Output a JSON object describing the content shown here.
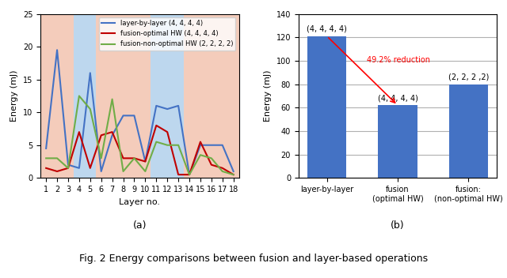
{
  "caption": "Fig. 2 Energy comparisons between fusion and layer-based operations",
  "chart_data": [
    {
      "type": "line",
      "subtitle": "(a)",
      "x_label": "Layer no.",
      "y_label": "Energy (mJ)",
      "x": [
        1,
        2,
        3,
        4,
        5,
        6,
        7,
        8,
        9,
        10,
        11,
        12,
        13,
        14,
        15,
        16,
        17,
        18
      ],
      "xlim": [
        0.5,
        18.5
      ],
      "xticks": [
        1,
        2,
        3,
        4,
        5,
        6,
        7,
        8,
        9,
        10,
        11,
        12,
        13,
        14,
        15,
        16,
        17,
        18
      ],
      "ylim": [
        0,
        25
      ],
      "yticks": [
        0,
        5,
        10,
        15,
        20,
        25
      ],
      "legend": "upper right",
      "bands": [
        {
          "from": 0.5,
          "to": 3.5,
          "color": "#F4CCBB"
        },
        {
          "from": 3.5,
          "to": 5.5,
          "color": "#BDD7EE"
        },
        {
          "from": 5.5,
          "to": 10.5,
          "color": "#F4CCBB"
        },
        {
          "from": 10.5,
          "to": 13.5,
          "color": "#BDD7EE"
        },
        {
          "from": 13.5,
          "to": 18.5,
          "color": "#F4CCBB"
        }
      ],
      "series": [
        {
          "name": "layer-by-layer (4, 4, 4, 4)",
          "color": "#4472C4",
          "values": [
            4.5,
            19.5,
            2,
            1.5,
            16,
            1,
            6.5,
            9.5,
            9.5,
            2.5,
            11,
            10.5,
            11,
            0.5,
            5,
            5,
            5,
            1
          ]
        },
        {
          "name": "fusion-optimal HW (4, 4, 4, 4)",
          "color": "#C00000",
          "values": [
            1.5,
            1,
            1.5,
            7,
            1.5,
            6.5,
            7,
            3,
            3,
            2.5,
            8,
            7,
            0.5,
            0.5,
            5.5,
            2,
            1.5,
            0.5
          ]
        },
        {
          "name": "fusion-non-optimal HW (2, 2, 2, 2)",
          "color": "#70AD47",
          "values": [
            3,
            3,
            1.5,
            12.5,
            10.5,
            3,
            12,
            1,
            3,
            1,
            5.5,
            5,
            5,
            0.5,
            3.5,
            3,
            1,
            0.5
          ]
        }
      ]
    },
    {
      "type": "bar",
      "subtitle": "(b)",
      "y_label": "Energy (mJ)",
      "categories": [
        "layer-by-layer",
        "fusion\n(optimal HW)",
        "fusion:\n(non-optimal HW)"
      ],
      "values": [
        121,
        62,
        80
      ],
      "color": "#4472C4",
      "ylim": [
        0,
        140
      ],
      "yticks": [
        0,
        20,
        40,
        60,
        80,
        100,
        120,
        140
      ],
      "grid": true,
      "annotations": [
        {
          "category": "layer-by-layer",
          "text": "(4, 4, 4, 4)"
        },
        {
          "category": "fusion\n(optimal HW)",
          "text": "(4, 4, 4, 4)"
        },
        {
          "category": "fusion:\n(non-optimal HW)",
          "text": "(2, 2, 2 ,2)"
        },
        {
          "text": "49.2% reduction",
          "color": "red",
          "arrow_from": "layer-by-layer",
          "arrow_to": "fusion\n(optimal HW)"
        }
      ]
    }
  ]
}
